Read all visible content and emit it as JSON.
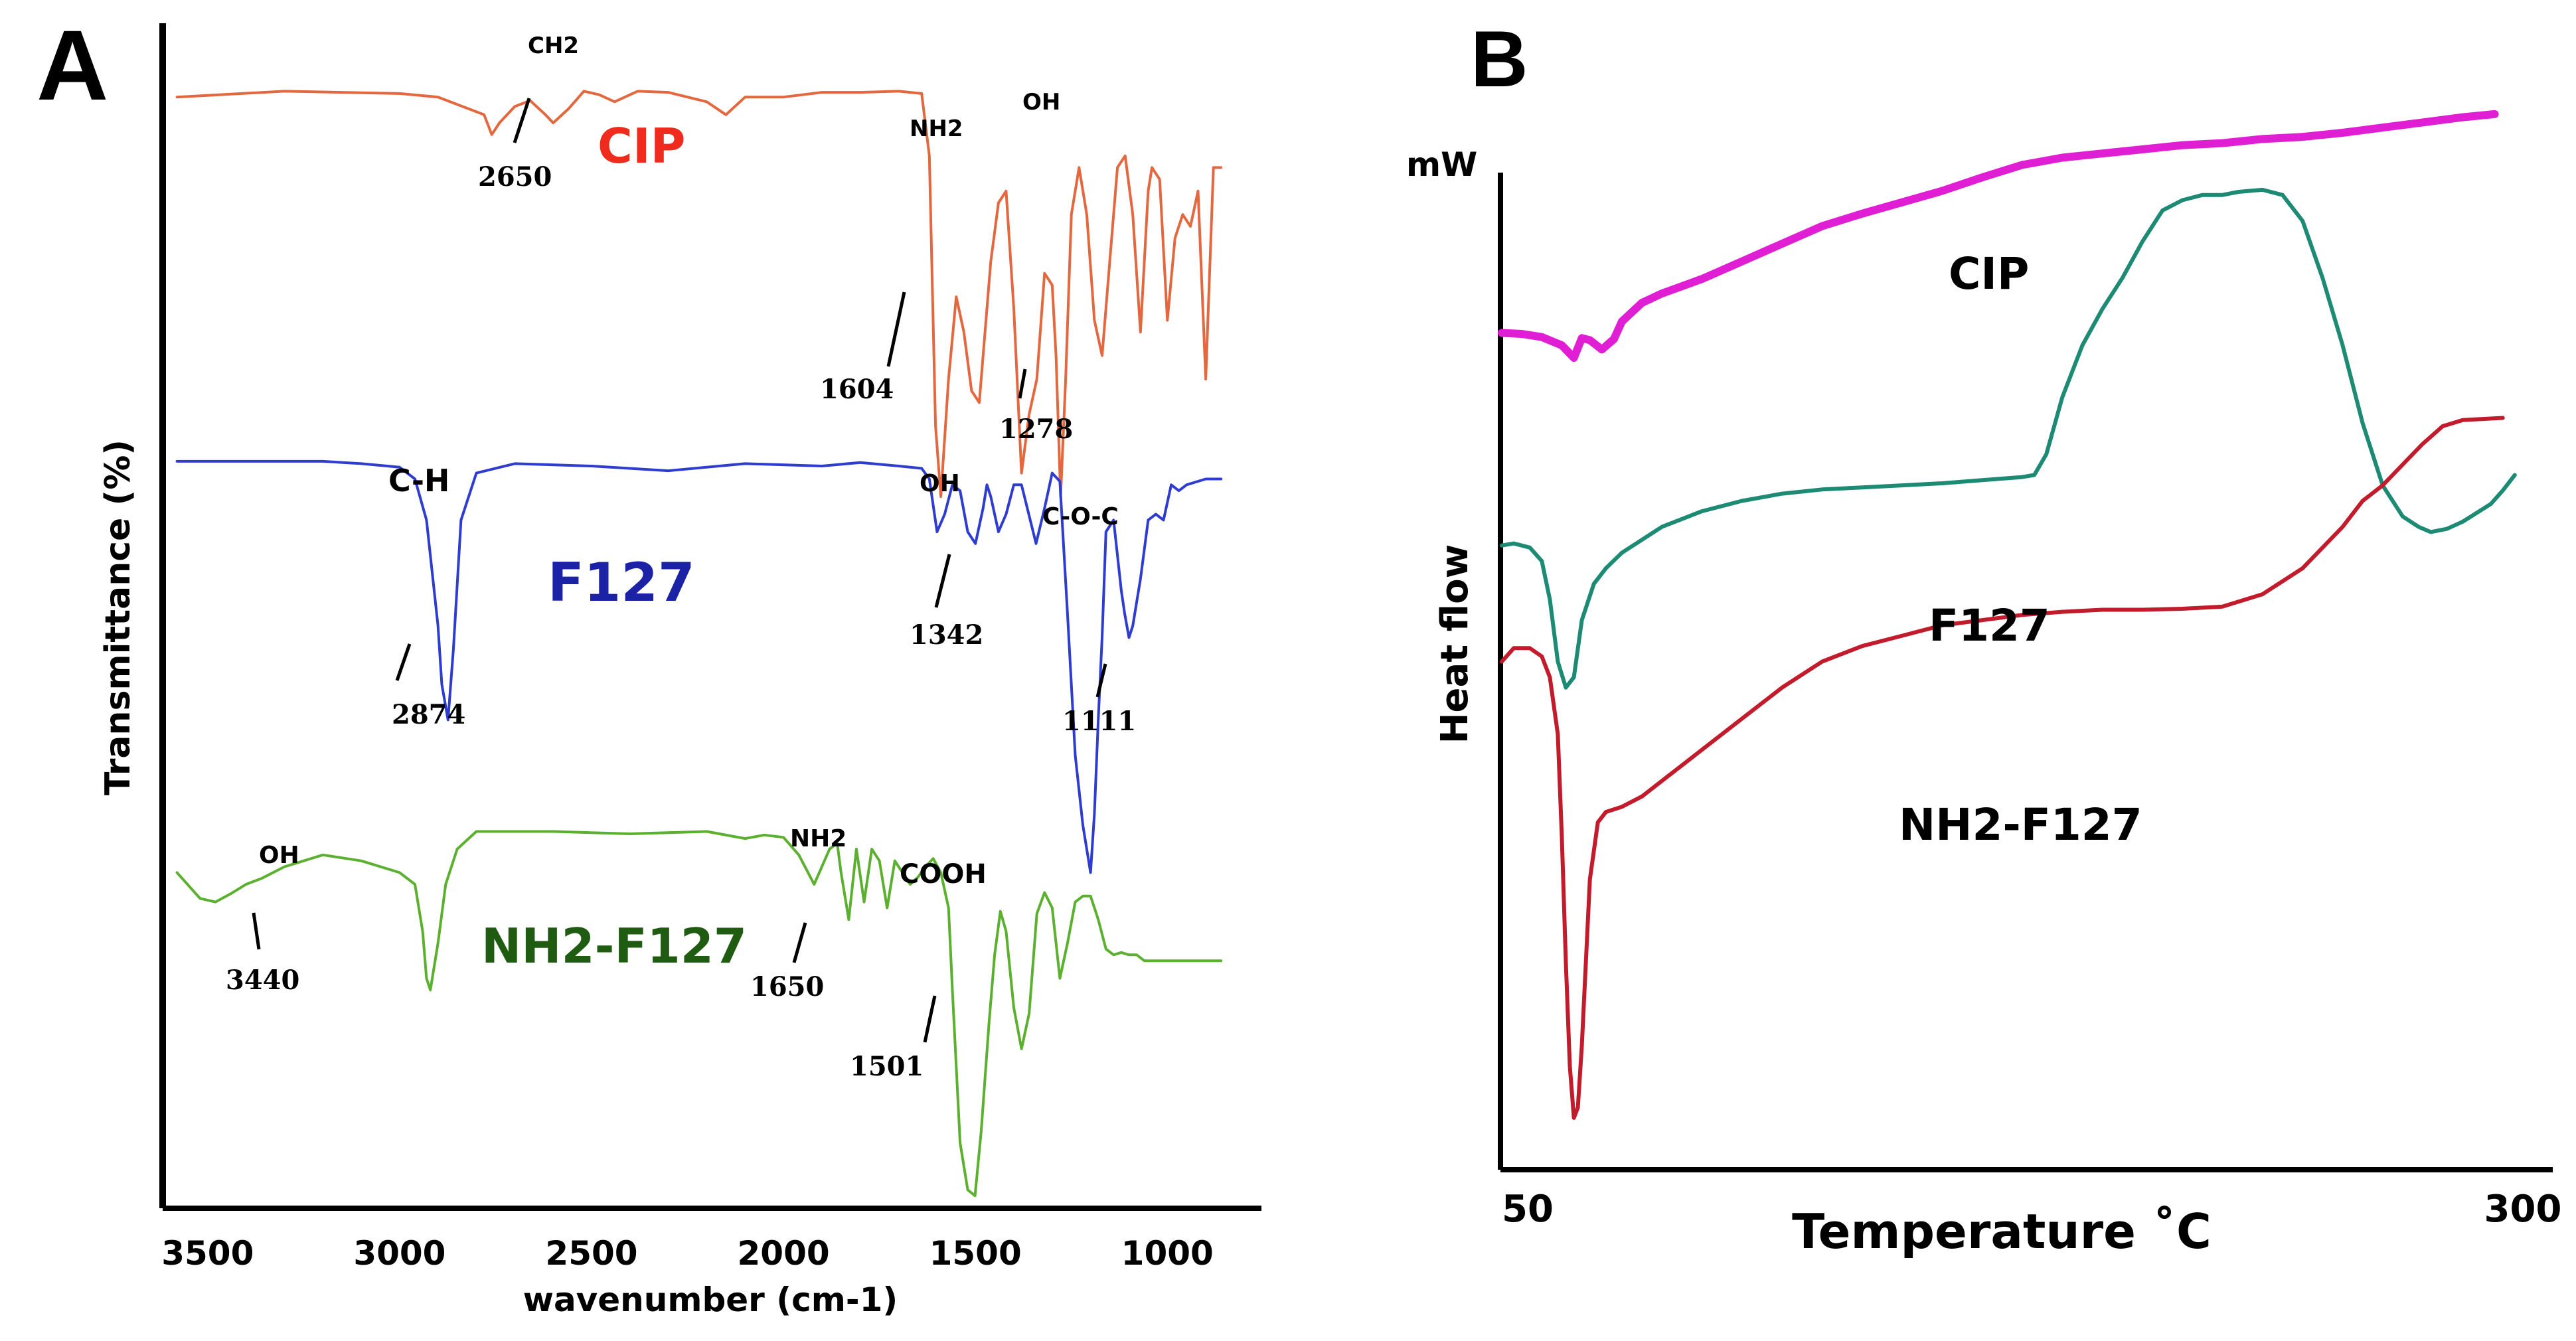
{
  "chart_data": [
    {
      "panel": "A",
      "type": "line",
      "title": "",
      "xlabel": "wavenumber (cm-1)",
      "ylabel": "Transmittance (%)",
      "xlim": [
        3600,
        850
      ],
      "x_reversed": true,
      "xticks": [
        3500,
        3000,
        2500,
        2000,
        1500,
        1000
      ],
      "ylim": [
        0,
        100
      ],
      "yticks_shown": false,
      "colors": {
        "CIP": "#e3683f",
        "F127": "#2f3cd0",
        "NH2-F127": "#5cb030"
      },
      "label_colors": {
        "CIP": "#ef2b1e",
        "F127": "#1c22a6",
        "NH2-F127": "#1f5c12"
      },
      "series": [
        {
          "name": "CIP",
          "baseline": 94,
          "x": [
            3580,
            3300,
            3000,
            2900,
            2780,
            2760,
            2740,
            2700,
            2660,
            2620,
            2600,
            2560,
            2520,
            2480,
            2440,
            2380,
            2300,
            2200,
            2150,
            2100,
            2000,
            1900,
            1800,
            1700,
            1640,
            1620,
            1604,
            1590,
            1570,
            1550,
            1530,
            1510,
            1490,
            1460,
            1440,
            1420,
            1400,
            1380,
            1360,
            1340,
            1320,
            1300,
            1290,
            1278,
            1265,
            1250,
            1230,
            1210,
            1190,
            1170,
            1150,
            1130,
            1110,
            1090,
            1070,
            1050,
            1040,
            1020,
            1000,
            980,
            960,
            940,
            920,
            900,
            880,
            860
          ],
          "y": [
            94,
            94.5,
            94.3,
            94,
            92.5,
            90.8,
            91.8,
            93.2,
            93.7,
            92.5,
            91.8,
            93,
            94.5,
            94.2,
            93.6,
            94.5,
            94.4,
            93.6,
            92.5,
            94,
            94,
            94.4,
            94.4,
            94.5,
            94.3,
            89,
            66,
            60,
            70,
            77,
            74,
            69,
            68,
            80,
            85,
            86,
            76,
            62,
            67,
            70,
            79,
            78,
            72,
            60,
            70,
            84,
            88,
            84,
            75,
            72,
            80,
            88,
            89,
            84,
            74,
            86,
            88,
            87,
            75,
            82,
            84,
            83,
            86,
            70,
            88,
            88
          ]
        },
        {
          "name": "F127",
          "baseline": 63,
          "x": [
            3580,
            3400,
            3200,
            3100,
            3000,
            2960,
            2930,
            2900,
            2890,
            2874,
            2860,
            2840,
            2800,
            2700,
            2500,
            2300,
            2100,
            1900,
            1800,
            1700,
            1640,
            1620,
            1600,
            1580,
            1560,
            1540,
            1520,
            1500,
            1480,
            1470,
            1460,
            1440,
            1420,
            1400,
            1380,
            1342,
            1320,
            1300,
            1280,
            1260,
            1240,
            1220,
            1200,
            1190,
            1180,
            1170,
            1160,
            1140,
            1120,
            1111,
            1100,
            1090,
            1070,
            1050,
            1030,
            1010,
            990,
            970,
            950,
            900,
            860
          ],
          "y": [
            63,
            63,
            63,
            62.8,
            62.5,
            61.5,
            58,
            49,
            44,
            41,
            47,
            58,
            62,
            62.8,
            62.6,
            62.2,
            62.8,
            62.6,
            62.9,
            62.6,
            62.4,
            61.5,
            57,
            58.5,
            61,
            60.5,
            57,
            56,
            59,
            61,
            60,
            57,
            58.5,
            61,
            61,
            56,
            59,
            62,
            61.3,
            50,
            38,
            32,
            28,
            33,
            41,
            48,
            57,
            58,
            52,
            50,
            48,
            49,
            53,
            58,
            58.5,
            58,
            61,
            60.5,
            61,
            61.5,
            61.5
          ]
        },
        {
          "name": "NH2-F127",
          "baseline": 28,
          "x": [
            3580,
            3520,
            3480,
            3440,
            3400,
            3360,
            3300,
            3200,
            3100,
            3000,
            2960,
            2940,
            2930,
            2920,
            2900,
            2880,
            2850,
            2800,
            2700,
            2600,
            2400,
            2200,
            2100,
            2050,
            2000,
            1960,
            1920,
            1900,
            1880,
            1860,
            1850,
            1830,
            1810,
            1790,
            1770,
            1750,
            1730,
            1710,
            1690,
            1670,
            1650,
            1630,
            1610,
            1590,
            1570,
            1560,
            1540,
            1520,
            1501,
            1485,
            1465,
            1450,
            1435,
            1420,
            1400,
            1380,
            1360,
            1340,
            1320,
            1300,
            1280,
            1260,
            1240,
            1220,
            1200,
            1180,
            1160,
            1140,
            1120,
            1100,
            1080,
            1060,
            1040,
            1000,
            950,
            900,
            860
          ],
          "y": [
            28,
            25.8,
            25.5,
            26.2,
            27,
            27.5,
            28.5,
            29.5,
            29,
            28,
            27,
            23,
            19,
            18,
            22,
            27,
            30,
            31.5,
            31.5,
            31.5,
            31.3,
            31.5,
            30.9,
            31.2,
            31,
            29.5,
            27,
            28.5,
            30,
            30.5,
            28,
            24,
            30,
            25.5,
            30,
            29,
            25,
            29,
            28,
            27,
            27.6,
            28.5,
            29.2,
            28,
            25,
            18,
            5,
            1,
            0.5,
            6,
            15,
            21,
            24.7,
            23,
            16.5,
            13,
            16,
            24.5,
            26.3,
            25,
            19,
            22,
            25.5,
            26,
            26,
            24,
            21.5,
            21,
            21.2,
            21,
            21,
            20.5,
            20.5,
            20.5,
            20.5,
            20.5,
            20.5
          ]
        }
      ],
      "series_labels": [
        "CIP",
        "F127",
        "NH2-F127"
      ],
      "annotations": {
        "CIP": {
          "top": [
            "CH2",
            "NH2",
            "OH"
          ],
          "peaks": [
            "2650",
            "1604",
            "1278"
          ]
        },
        "F127": {
          "top": [
            "C-H",
            "OH",
            "C-O-C"
          ],
          "peaks": [
            "2874",
            "1342",
            "1111"
          ]
        },
        "NH2-F127": {
          "top": [
            "OH",
            "NH2",
            "COOH"
          ],
          "peaks": [
            "3440",
            "1650",
            "1501"
          ]
        }
      }
    },
    {
      "panel": "B",
      "type": "line",
      "title": "",
      "xlabel": "Temperature ˚C",
      "ylabel": "Heat flow",
      "y_unit": "mW",
      "xlim": [
        50,
        310
      ],
      "xticks": [
        50,
        300
      ],
      "ylim": [
        0,
        100
      ],
      "yticks_shown": false,
      "colors": {
        "CIP": "#e01ed4",
        "F127": "#1d8a74",
        "NH2-F127": "#c21b2c"
      },
      "series": [
        {
          "name": "CIP",
          "x": [
            50,
            55,
            60,
            65,
            68,
            70,
            72,
            75,
            78,
            80,
            85,
            90,
            100,
            110,
            120,
            130,
            140,
            150,
            160,
            170,
            180,
            190,
            200,
            210,
            220,
            230,
            240,
            250,
            260,
            270,
            280,
            290,
            298
          ],
          "y": [
            80.7,
            80.6,
            80.3,
            79.5,
            78.3,
            80.2,
            80.0,
            79.1,
            80.1,
            81.8,
            83.6,
            84.5,
            85.9,
            87.6,
            89.3,
            91.0,
            92.2,
            93.3,
            94.4,
            95.7,
            96.9,
            97.6,
            98.0,
            98.4,
            98.8,
            99.0,
            99.4,
            99.6,
            100.0,
            100.5,
            101.0,
            101.5,
            101.8
          ]
        },
        {
          "name": "F127",
          "x": [
            50,
            53,
            57,
            60,
            62,
            64,
            66,
            68,
            70,
            73,
            76,
            80,
            90,
            100,
            110,
            120,
            130,
            140,
            150,
            160,
            170,
            180,
            183,
            186,
            190,
            195,
            200,
            205,
            210,
            215,
            220,
            225,
            230,
            234,
            240,
            245,
            250,
            255,
            260,
            265,
            270,
            275,
            279,
            282,
            286,
            290,
            297,
            300,
            303
          ],
          "y": [
            60.2,
            60.4,
            60.0,
            58.7,
            55.0,
            49.0,
            46.5,
            47.5,
            53.0,
            56.5,
            58.0,
            59.5,
            62.0,
            63.5,
            64.5,
            65.2,
            65.6,
            65.8,
            66.0,
            66.2,
            66.5,
            66.8,
            67.0,
            69.0,
            74.5,
            79.5,
            83.0,
            86.0,
            89.5,
            92.5,
            93.5,
            94.0,
            94.0,
            94.3,
            94.5,
            94.0,
            91.5,
            86.0,
            79.5,
            72.0,
            66.0,
            63.0,
            62.0,
            61.5,
            61.8,
            62.5,
            64.2,
            65.5,
            67.0
          ]
        },
        {
          "name": "NH2-F127",
          "x": [
            50,
            53,
            57,
            60,
            62,
            64,
            65,
            66,
            67,
            68,
            69,
            70,
            72,
            74,
            76,
            80,
            85,
            90,
            100,
            110,
            120,
            130,
            140,
            150,
            160,
            170,
            180,
            190,
            200,
            210,
            220,
            230,
            240,
            250,
            255,
            260,
            265,
            270,
            275,
            280,
            285,
            290,
            300
          ],
          "y": [
            49.0,
            50.3,
            50.3,
            49.5,
            47.5,
            42.0,
            32.0,
            20.0,
            10.0,
            5.0,
            6.0,
            12.0,
            28.0,
            33.5,
            34.5,
            35.0,
            36.0,
            37.5,
            40.5,
            43.5,
            46.5,
            49.0,
            50.5,
            51.5,
            52.5,
            53.0,
            53.5,
            53.8,
            54.0,
            54.0,
            54.1,
            54.3,
            55.5,
            58.0,
            60.0,
            62.0,
            64.5,
            66.0,
            68.0,
            70.0,
            71.7,
            72.3,
            72.5
          ]
        }
      ],
      "series_labels": [
        "CIP",
        "F127",
        "NH2-F127"
      ],
      "tick_labels": [
        "50",
        "300"
      ]
    }
  ],
  "panel_letters": {
    "a": "A",
    "b": "B"
  }
}
